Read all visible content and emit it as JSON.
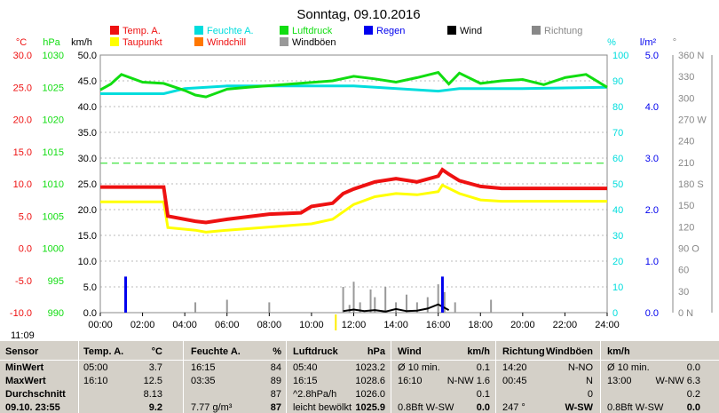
{
  "title": "Sonntag, 09.10.2016",
  "time_label": "11:09",
  "legend": [
    {
      "label": "Temp. A.",
      "color": "#ee1111"
    },
    {
      "label": "Feuchte A.",
      "color": "#00dddd"
    },
    {
      "label": "Luftdruck",
      "color": "#11dd11"
    },
    {
      "label": "Regen",
      "color": "#0000ee"
    },
    {
      "label": "Wind",
      "color": "#000000"
    },
    {
      "label": "Richtung",
      "color": "#888888"
    },
    {
      "label": "Taupunkt",
      "color": "#ffff00"
    },
    {
      "label": "Windchill",
      "color": "#ff7700"
    },
    {
      "label": "Windböen",
      "color": "#999999"
    }
  ],
  "colors": {
    "temp": "#ee1111",
    "hum": "#00dddd",
    "press": "#11dd11",
    "rain": "#0000ee",
    "wind": "#000000",
    "gust": "#999999",
    "dew": "#ffff00",
    "dir": "#888888"
  },
  "axes": {
    "temp": {
      "unit": "°C",
      "ticks": [
        "30.0",
        "25.0",
        "20.0",
        "15.0",
        "10.0",
        "5.0",
        "0.0",
        "-5.0",
        "-10.0"
      ]
    },
    "press": {
      "unit": "hPa",
      "ticks": [
        "1030",
        "1025",
        "1020",
        "1015",
        "1010",
        "1005",
        "1000",
        "995",
        "990"
      ]
    },
    "wind": {
      "unit": "km/h",
      "ticks": [
        "50.0",
        "45.0",
        "40.0",
        "35.0",
        "30.0",
        "25.0",
        "20.0",
        "15.0",
        "10.0",
        "5.0",
        "0.0"
      ]
    },
    "hum": {
      "unit": "%",
      "ticks": [
        "100",
        "90",
        "80",
        "70",
        "60",
        "50",
        "40",
        "30",
        "20",
        "10",
        "0"
      ]
    },
    "rain": {
      "unit": "l/m²",
      "ticks": [
        "5.0",
        "4.0",
        "3.0",
        "2.0",
        "1.0",
        "0.0"
      ]
    },
    "dir": {
      "unit": "°",
      "ticks": [
        "360 N",
        "330",
        "300",
        "270 W",
        "240",
        "210",
        "180 S",
        "150",
        "120",
        "90 O",
        "60",
        "30",
        "0 N"
      ]
    },
    "x": {
      "ticks": [
        "00:00",
        "02:00",
        "04:00",
        "06:00",
        "08:00",
        "10:00",
        "12:00",
        "14:00",
        "16:00",
        "18:00",
        "20:00",
        "22:00",
        "24:00"
      ]
    }
  },
  "chart_data": {
    "type": "line",
    "title": "Sonntag, 09.10.2016",
    "xlim": [
      0,
      24
    ],
    "series": [
      {
        "name": "Temp. A.",
        "unit": "°C",
        "x": [
          0,
          3,
          3.2,
          4.5,
          5,
          6,
          8,
          9.5,
          10,
          11,
          11.5,
          12,
          13,
          14,
          15,
          16,
          16.2,
          16.5,
          17,
          18,
          19,
          20,
          24
        ],
        "y": [
          9.5,
          9.5,
          5,
          4.2,
          4,
          4.5,
          5.3,
          5.5,
          6.5,
          7,
          8.5,
          9.2,
          10.3,
          10.8,
          10.3,
          11.2,
          12.2,
          11.5,
          10.5,
          9.6,
          9.3,
          9.3,
          9.3
        ]
      },
      {
        "name": "Taupunkt",
        "unit": "°C",
        "x": [
          0,
          3,
          3.2,
          4.5,
          5,
          6,
          8,
          10,
          11,
          12,
          13,
          14,
          15,
          16,
          16.2,
          17,
          18,
          19,
          24
        ],
        "y": [
          7.2,
          7.2,
          3.2,
          2.8,
          2.5,
          2.8,
          3.3,
          3.8,
          4.5,
          6.8,
          8,
          8.5,
          8.3,
          8.8,
          9.8,
          8.5,
          7.5,
          7.3,
          7.3
        ]
      },
      {
        "name": "Feuchte A.",
        "unit": "%",
        "x": [
          0,
          3,
          4,
          6,
          8,
          12,
          16,
          17,
          20,
          24
        ],
        "y": [
          85,
          85,
          87,
          88,
          88,
          88,
          86,
          87,
          87,
          87.5
        ]
      },
      {
        "name": "Luftdruck",
        "unit": "hPa",
        "x": [
          0,
          0.5,
          1,
          2,
          3,
          4,
          4.5,
          5,
          6,
          7,
          9,
          11,
          12,
          13,
          14,
          15,
          16,
          16.5,
          17,
          18,
          19,
          20,
          21,
          22,
          23,
          24
        ],
        "y": [
          1024.6,
          1025.5,
          1027,
          1025.8,
          1025.6,
          1024.5,
          1023.8,
          1023.5,
          1024.7,
          1025,
          1025.5,
          1026,
          1026.7,
          1026.3,
          1025.8,
          1026.5,
          1027.3,
          1025.5,
          1027.2,
          1025.6,
          1026,
          1026.2,
          1025.4,
          1026.5,
          1027,
          1025
        ]
      },
      {
        "name": "Regen",
        "unit": "l/m²",
        "x": [
          1.2,
          16.2
        ],
        "y": [
          0.7,
          0.7
        ]
      },
      {
        "name": "Wind",
        "unit": "km/h",
        "x": [
          11.5,
          12,
          12.5,
          13,
          13.5,
          14,
          14.5,
          15,
          15.5,
          16,
          16.5
        ],
        "y": [
          0.3,
          0.6,
          0.3,
          0.5,
          0.2,
          0.7,
          0.3,
          0.4,
          0.8,
          1.6,
          0.5
        ]
      },
      {
        "name": "Windböen",
        "unit": "km/h",
        "x": [
          4.5,
          6,
          8,
          11.5,
          11.8,
          12,
          12.3,
          12.8,
          13,
          13.5,
          14,
          14.5,
          15,
          15.5,
          16,
          16.3,
          16.8,
          18.5
        ],
        "y": [
          2,
          2.5,
          2,
          5,
          1.5,
          6,
          2,
          4.5,
          3,
          5,
          2,
          3.5,
          2,
          3,
          5.5,
          4,
          2,
          2.5
        ]
      }
    ]
  },
  "table": {
    "headers": [
      "Sensor",
      "Temp. A.",
      "°C",
      "Feuchte A.",
      "%",
      "Luftdruck",
      "hPa",
      "Wind",
      "km/h",
      "Richtung",
      "Windböen",
      "km/h"
    ],
    "rows": [
      {
        "label": "MinWert",
        "c": [
          "05:00",
          "3.7",
          "16:15",
          "84",
          "05:40",
          "1023.2",
          "Ø 10 min.",
          "0.1",
          "14:20",
          "N-NO",
          "Ø 10 min.",
          "0.0"
        ]
      },
      {
        "label": "MaxWert",
        "c": [
          "16:10",
          "12.5",
          "03:35",
          "89",
          "16:15",
          "1028.6",
          "16:10",
          "N-NW 1.6",
          "00:45",
          "N",
          "13:00",
          "W-NW 6.3"
        ]
      },
      {
        "label": "Durchschnitt",
        "c": [
          "",
          "8.13",
          "",
          "87",
          "^2.8hPa/h",
          "1026.0",
          "",
          "0.1",
          "",
          "0",
          "",
          "0.2"
        ]
      },
      {
        "label": "09.10. 23:55",
        "c": [
          "",
          "9.2",
          "7.77 g/m³",
          "87",
          "leicht bewölkt",
          "1025.9",
          "0.8Bft W-SW",
          "0.0",
          "247 °",
          "W-SW",
          "0.8Bft W-SW",
          "0.0"
        ]
      }
    ]
  }
}
